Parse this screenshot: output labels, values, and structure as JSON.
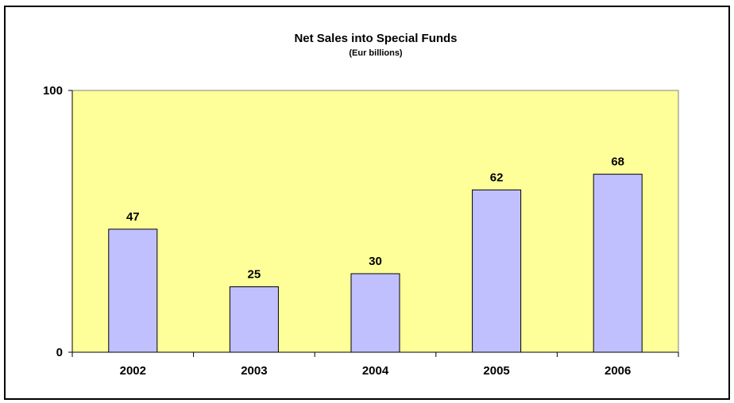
{
  "chart_data": {
    "type": "bar",
    "title": "Net Sales into Special Funds",
    "subtitle": "(Eur billions)",
    "categories": [
      "2002",
      "2003",
      "2004",
      "2005",
      "2006"
    ],
    "values": [
      47,
      25,
      30,
      62,
      68
    ],
    "data_labels": [
      "47",
      "25",
      "30",
      "62",
      "68"
    ],
    "ylim": [
      0,
      100
    ],
    "yticks": [
      "0",
      "100"
    ],
    "grid": false,
    "legend": "none",
    "colors": {
      "plot_background": "#FFFF99",
      "bar_fill": "#C0C0FF",
      "bar_stroke": "#000000"
    }
  }
}
